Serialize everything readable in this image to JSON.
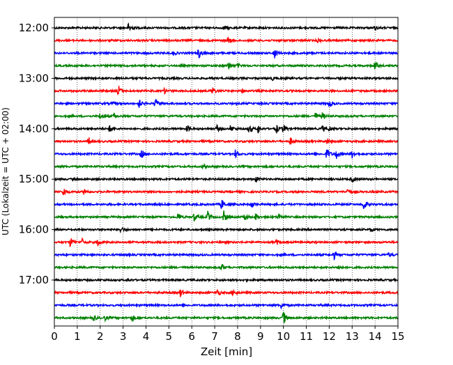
{
  "chart_data": {
    "type": "line",
    "subtype": "helicorder",
    "title": "",
    "xlabel": "Zeit  [min]",
    "ylabel": "UTC (Lokalzeit = UTC + 02:00)",
    "xlim": [
      0,
      15
    ],
    "x_ticks": [
      "0",
      "1",
      "2",
      "3",
      "4",
      "5",
      "6",
      "7",
      "8",
      "9",
      "10",
      "11",
      "12",
      "13",
      "14",
      "15"
    ],
    "y_ticks": [
      "12:00",
      "13:00",
      "14:00",
      "15:00",
      "16:00",
      "17:00"
    ],
    "grid": "vertical dotted lines at each minute",
    "trace_color_cycle": [
      "#000000",
      "#ff0000",
      "#0000ff",
      "#008000"
    ],
    "traces": [
      {
        "start": "12:00",
        "events": [
          {
            "min": 3.25,
            "amp": 1.0
          },
          {
            "min": 7.4,
            "amp": 0.35
          },
          {
            "min": 14.0,
            "amp": 0.3
          }
        ]
      },
      {
        "start": "12:15",
        "events": [
          {
            "min": 7.6,
            "amp": 0.6
          },
          {
            "min": 11.5,
            "amp": 0.3
          }
        ]
      },
      {
        "start": "12:30",
        "events": [
          {
            "min": 6.3,
            "amp": 0.9
          },
          {
            "min": 9.6,
            "amp": 0.9
          },
          {
            "min": 5.2,
            "amp": 0.3
          }
        ]
      },
      {
        "start": "12:45",
        "events": [
          {
            "min": 7.6,
            "amp": 0.8
          },
          {
            "min": 14.0,
            "amp": 0.8
          },
          {
            "min": 8.0,
            "amp": 0.3
          }
        ]
      },
      {
        "start": "13:00",
        "events": [
          {
            "min": 9.5,
            "amp": 0.3
          }
        ]
      },
      {
        "start": "13:15",
        "events": [
          {
            "min": 2.8,
            "amp": 0.9
          },
          {
            "min": 6.9,
            "amp": 0.6
          },
          {
            "min": 4.8,
            "amp": 0.4
          },
          {
            "min": 8.2,
            "amp": 0.3
          }
        ]
      },
      {
        "start": "13:30",
        "events": [
          {
            "min": 3.7,
            "amp": 0.7
          },
          {
            "min": 4.4,
            "amp": 0.8
          },
          {
            "min": 12.0,
            "amp": 0.6
          },
          {
            "min": 2.5,
            "amp": 0.3
          }
        ]
      },
      {
        "start": "13:45",
        "events": [
          {
            "min": 2.0,
            "amp": 0.5
          },
          {
            "min": 2.6,
            "amp": 0.5
          },
          {
            "min": 11.4,
            "amp": 0.6
          },
          {
            "min": 11.7,
            "amp": 0.5
          }
        ]
      },
      {
        "start": "14:00",
        "events": [
          {
            "min": 2.4,
            "amp": 0.5
          },
          {
            "min": 5.8,
            "amp": 0.6
          },
          {
            "min": 7.1,
            "amp": 0.5
          },
          {
            "min": 7.7,
            "amp": 0.6
          },
          {
            "min": 8.5,
            "amp": 0.7
          },
          {
            "min": 8.9,
            "amp": 0.7
          },
          {
            "min": 9.7,
            "amp": 0.6
          },
          {
            "min": 10.0,
            "amp": 0.7
          },
          {
            "min": 11.7,
            "amp": 0.5
          },
          {
            "min": 12.0,
            "amp": 0.4
          }
        ]
      },
      {
        "start": "14:15",
        "events": [
          {
            "min": 1.5,
            "amp": 0.6
          },
          {
            "min": 10.3,
            "amp": 0.6
          },
          {
            "min": 11.9,
            "amp": 0.4
          }
        ]
      },
      {
        "start": "14:30",
        "events": [
          {
            "min": 3.8,
            "amp": 0.8
          },
          {
            "min": 7.9,
            "amp": 0.6
          },
          {
            "min": 11.9,
            "amp": 1.0
          },
          {
            "min": 12.3,
            "amp": 0.8
          },
          {
            "min": 13.0,
            "amp": 0.6
          }
        ]
      },
      {
        "start": "14:45",
        "events": [
          {
            "min": 6.5,
            "amp": 0.4
          }
        ]
      },
      {
        "start": "15:00",
        "events": [
          {
            "min": 8.8,
            "amp": 0.5
          },
          {
            "min": 13.0,
            "amp": 0.5
          }
        ]
      },
      {
        "start": "15:15",
        "events": [
          {
            "min": 0.4,
            "amp": 0.7
          },
          {
            "min": 1.3,
            "amp": 0.5
          },
          {
            "min": 12.8,
            "amp": 0.5
          }
        ]
      },
      {
        "start": "15:30",
        "events": [
          {
            "min": 7.3,
            "amp": 0.8
          },
          {
            "min": 8.6,
            "amp": 0.6
          },
          {
            "min": 13.5,
            "amp": 0.9
          }
        ]
      },
      {
        "start": "15:45",
        "events": [
          {
            "min": 5.4,
            "amp": 0.7
          },
          {
            "min": 6.1,
            "amp": 0.7
          },
          {
            "min": 6.7,
            "amp": 0.9
          },
          {
            "min": 7.4,
            "amp": 1.0
          },
          {
            "min": 8.3,
            "amp": 0.6
          },
          {
            "min": 8.8,
            "amp": 0.6
          },
          {
            "min": 9.8,
            "amp": 0.6
          }
        ]
      },
      {
        "start": "16:00",
        "events": [
          {
            "min": 2.9,
            "amp": 0.5
          },
          {
            "min": 13.8,
            "amp": 0.4
          }
        ]
      },
      {
        "start": "16:15",
        "events": [
          {
            "min": 0.7,
            "amp": 0.8
          },
          {
            "min": 1.2,
            "amp": 0.6
          },
          {
            "min": 1.9,
            "amp": 0.6
          },
          {
            "min": 9.7,
            "amp": 0.4
          }
        ]
      },
      {
        "start": "16:30",
        "events": [
          {
            "min": 12.2,
            "amp": 0.7
          },
          {
            "min": 14.6,
            "amp": 0.4
          }
        ]
      },
      {
        "start": "16:45",
        "events": [
          {
            "min": 7.3,
            "amp": 0.6
          },
          {
            "min": 12.4,
            "amp": 0.5
          }
        ]
      },
      {
        "start": "17:00",
        "events": [
          {
            "min": 3.2,
            "amp": 0.4
          }
        ]
      },
      {
        "start": "17:15",
        "events": [
          {
            "min": 5.5,
            "amp": 0.7
          },
          {
            "min": 7.1,
            "amp": 0.7
          },
          {
            "min": 7.8,
            "amp": 0.5
          }
        ]
      },
      {
        "start": "17:30",
        "events": [
          {
            "min": 9.9,
            "amp": 0.4
          }
        ]
      },
      {
        "start": "17:45",
        "events": [
          {
            "min": 1.7,
            "amp": 0.5
          },
          {
            "min": 2.2,
            "amp": 0.4
          },
          {
            "min": 3.4,
            "amp": 0.5
          },
          {
            "min": 10.0,
            "amp": 1.2
          }
        ]
      }
    ]
  }
}
